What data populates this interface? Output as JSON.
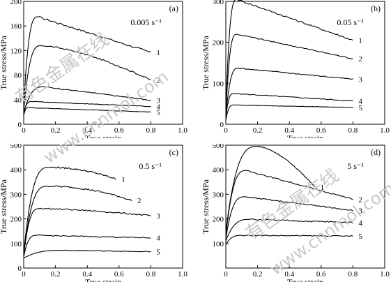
{
  "watermark": {
    "cn_text": "有色金属在线",
    "url_text": "www.cnnmol.com",
    "color": "#c8c8c8"
  },
  "style": {
    "line_color": "#000000",
    "background": "#ffffff"
  },
  "chart_data": [
    {
      "id": "a",
      "type": "line",
      "panel_label": "(a)",
      "annotation": "0.005 s⁻¹",
      "xlabel": "True strain",
      "ylabel": "True stress/MPa",
      "xlim": [
        0,
        1.0
      ],
      "ylim": [
        0,
        200
      ],
      "xticks": [
        "0",
        "0.2",
        "0.4",
        "0.6",
        "0.8",
        "1.0"
      ],
      "xtick_values": [
        0,
        0.2,
        0.4,
        0.6,
        0.8,
        1.0
      ],
      "yticks": [
        "0",
        "40",
        "80",
        "120",
        "160",
        "200"
      ],
      "ytick_values": [
        0,
        40,
        80,
        120,
        160,
        200
      ],
      "series": [
        {
          "name": "1",
          "start": 28,
          "peak_strain": 0.09,
          "peak": 175,
          "end_strain": 0.8,
          "end": 117,
          "shape": 1.0,
          "noise": 1.5
        },
        {
          "name": "2",
          "start": 22,
          "peak_strain": 0.11,
          "peak": 128,
          "end_strain": 0.8,
          "end": 72,
          "shape": 1.5,
          "noise": 1.2
        },
        {
          "name": "3",
          "start": 18,
          "peak_strain": 0.13,
          "peak": 61,
          "end_strain": 0.8,
          "end": 39,
          "shape": 1.0,
          "noise": 0.8
        },
        {
          "name": "4",
          "start": 18,
          "peak_strain": 0.05,
          "peak": 37,
          "end_strain": 0.8,
          "end": 29,
          "shape": 1.0,
          "noise": 0.4
        },
        {
          "name": "5",
          "start": 14,
          "peak_strain": 0.03,
          "peak": 27,
          "end_strain": 0.8,
          "end": 20,
          "shape": 1.0,
          "noise": 0.3
        }
      ]
    },
    {
      "id": "b",
      "type": "line",
      "panel_label": "(b)",
      "annotation": "0.05 s⁻¹",
      "xlabel": "True strain",
      "ylabel": "True stress/MPa",
      "xlim": [
        0,
        1.0
      ],
      "ylim": [
        0,
        300
      ],
      "xticks": [
        "0",
        "0.2",
        "0.4",
        "0.6",
        "0.8",
        "1.0"
      ],
      "xtick_values": [
        0,
        0.2,
        0.4,
        0.6,
        0.8,
        1.0
      ],
      "yticks": [
        "0",
        "100",
        "200",
        "300"
      ],
      "ytick_values": [
        0,
        100,
        200,
        300
      ],
      "series": [
        {
          "name": "1",
          "start": 30,
          "peak_strain": 0.07,
          "peak": 305,
          "end_strain": 0.8,
          "end": 205,
          "shape": 1.0,
          "noise": 2.0
        },
        {
          "name": "2",
          "start": 25,
          "peak_strain": 0.07,
          "peak": 220,
          "end_strain": 0.8,
          "end": 160,
          "shape": 1.0,
          "noise": 1.5
        },
        {
          "name": "3",
          "start": 20,
          "peak_strain": 0.08,
          "peak": 137,
          "end_strain": 0.8,
          "end": 110,
          "shape": 1.0,
          "noise": 1.2
        },
        {
          "name": "4",
          "start": 15,
          "peak_strain": 0.05,
          "peak": 75,
          "end_strain": 0.8,
          "end": 57,
          "shape": 1.0,
          "noise": 1.0
        },
        {
          "name": "5",
          "start": 10,
          "peak_strain": 0.05,
          "peak": 47,
          "end_strain": 0.8,
          "end": 41,
          "shape": 1.0,
          "noise": 0.5
        }
      ]
    },
    {
      "id": "c",
      "type": "line",
      "panel_label": "(c)",
      "annotation": "0.5 s⁻¹",
      "xlabel": "True strain",
      "ylabel": "True stress/MPa",
      "xlim": [
        0,
        1.0
      ],
      "ylim": [
        0,
        500
      ],
      "xticks": [
        "0",
        "0.2",
        "0.4",
        "0.6",
        "0.8",
        "1.0"
      ],
      "xtick_values": [
        0,
        0.2,
        0.4,
        0.6,
        0.8,
        1.0
      ],
      "yticks": [
        "0",
        "100",
        "200",
        "300",
        "400",
        "500"
      ],
      "ytick_values": [
        0,
        100,
        200,
        300,
        400,
        500
      ],
      "series": [
        {
          "name": "1",
          "start": 60,
          "peak_strain": 0.16,
          "peak": 410,
          "end_strain": 0.58,
          "end": 362,
          "shape": 2.0,
          "noise": 3.0
        },
        {
          "name": "2",
          "start": 55,
          "peak_strain": 0.15,
          "peak": 333,
          "end_strain": 0.68,
          "end": 275,
          "shape": 2.0,
          "noise": 3.0
        },
        {
          "name": "3",
          "start": 50,
          "peak_strain": 0.1,
          "peak": 242,
          "end_strain": 0.8,
          "end": 213,
          "shape": 1.5,
          "noise": 2.5
        },
        {
          "name": "4",
          "start": 45,
          "peak_strain": 0.08,
          "peak": 133,
          "end_strain": 0.8,
          "end": 123,
          "shape": 1.0,
          "noise": 2.0
        },
        {
          "name": "5",
          "start": 40,
          "peak_strain": 0.25,
          "peak": 72,
          "end_strain": 0.8,
          "end": 67,
          "shape": 1.0,
          "noise": 1.5
        }
      ]
    },
    {
      "id": "d",
      "type": "line",
      "panel_label": "(d)",
      "annotation": "5 s⁻¹",
      "xlabel": "True strain",
      "ylabel": "True stress/MPa",
      "xlim": [
        0,
        1.0
      ],
      "ylim": [
        0,
        500
      ],
      "xticks": [
        "0",
        "0.2",
        "0.4",
        "0.6",
        "0.8",
        "1.0"
      ],
      "xtick_values": [
        0,
        0.2,
        0.4,
        0.6,
        0.8,
        1.0
      ],
      "yticks": [
        "100",
        "200",
        "300",
        "400",
        "500"
      ],
      "ytick_values": [
        100,
        200,
        300,
        400,
        500
      ],
      "series": [
        {
          "name": "1",
          "start": 150,
          "peak_strain": 0.2,
          "peak": 495,
          "end_strain": 0.56,
          "end": 330,
          "shape": 1.6,
          "noise": 2.0
        },
        {
          "name": "2",
          "start": 130,
          "peak_strain": 0.13,
          "peak": 397,
          "end_strain": 0.8,
          "end": 280,
          "shape": 1.0,
          "noise": 2.5
        },
        {
          "name": "3",
          "start": 120,
          "peak_strain": 0.12,
          "peak": 290,
          "end_strain": 0.8,
          "end": 235,
          "shape": 1.0,
          "noise": 2.5
        },
        {
          "name": "4",
          "start": 110,
          "peak_strain": 0.15,
          "peak": 198,
          "end_strain": 0.8,
          "end": 185,
          "shape": 1.0,
          "noise": 3.0
        },
        {
          "name": "5",
          "start": 95,
          "peak_strain": 0.1,
          "peak": 133,
          "end_strain": 0.8,
          "end": 130,
          "shape": 1.0,
          "noise": 2.0
        }
      ]
    }
  ]
}
